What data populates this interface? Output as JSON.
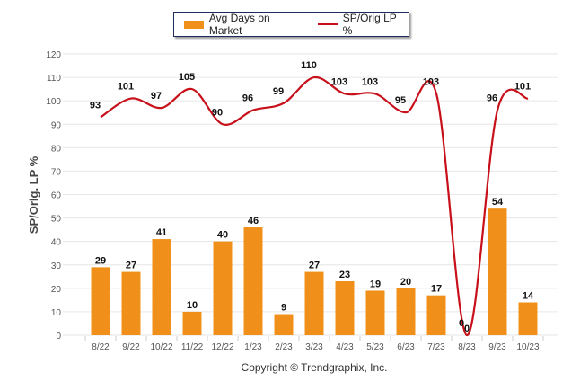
{
  "chart_data": {
    "type": "bar+line",
    "categories": [
      "8/22",
      "9/22",
      "10/22",
      "11/22",
      "12/22",
      "1/23",
      "2/23",
      "3/23",
      "4/23",
      "5/23",
      "6/23",
      "7/23",
      "8/23",
      "9/23",
      "10/23"
    ],
    "series": [
      {
        "name": "Avg Days on Market",
        "type": "bar",
        "color": "#f0901a",
        "values": [
          29,
          27,
          41,
          10,
          40,
          46,
          9,
          27,
          23,
          19,
          20,
          17,
          0,
          54,
          14
        ]
      },
      {
        "name": "SP/Orig LP %",
        "type": "line",
        "color": "#c8101a",
        "values": [
          93,
          101,
          97,
          105,
          90,
          96,
          99,
          110,
          103,
          103,
          95,
          103,
          0,
          96,
          101
        ]
      }
    ],
    "ylabel": "SP/Orig. LP %",
    "ylim": [
      0,
      120
    ],
    "yticks": [
      0,
      10,
      20,
      30,
      40,
      50,
      60,
      70,
      80,
      90,
      100,
      110,
      120
    ],
    "grid": true,
    "legend_position": "top-center"
  },
  "footer": {
    "copyright": "Copyright © Trendgraphix, Inc."
  }
}
